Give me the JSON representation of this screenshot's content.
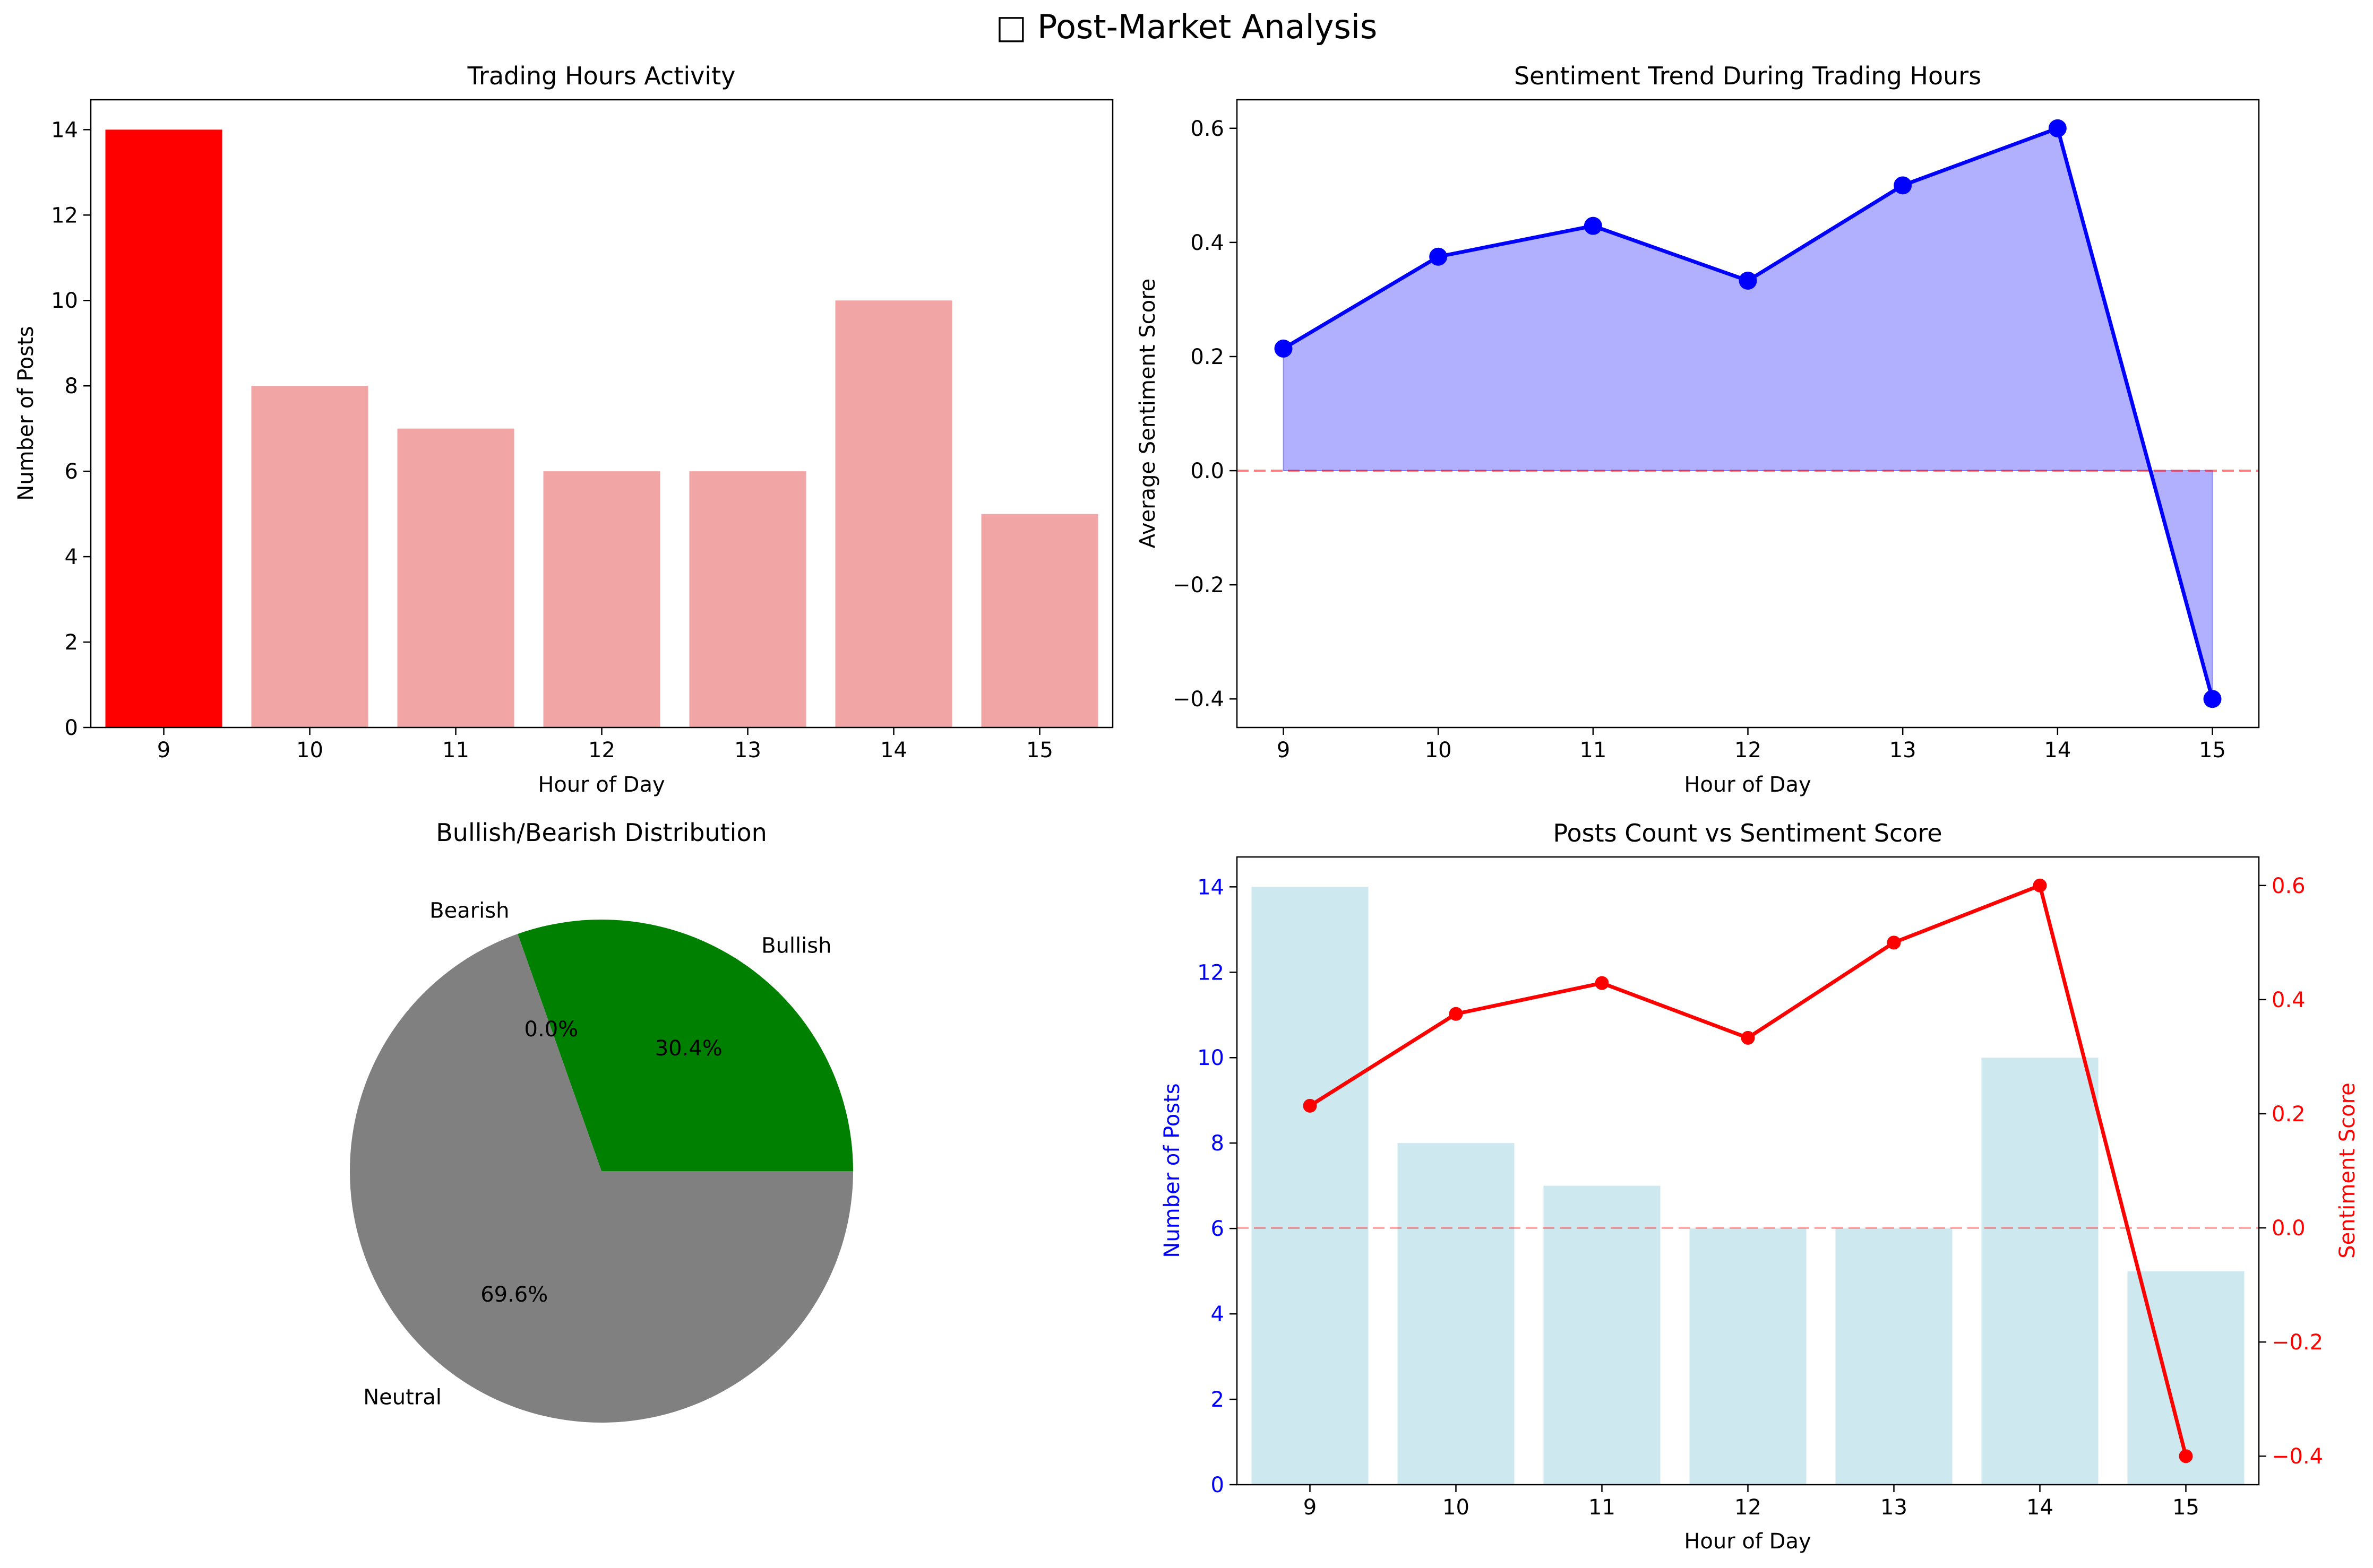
{
  "figure": {
    "title": "□ Post-Market Analysis"
  },
  "chart_data": [
    {
      "type": "bar",
      "title": "Trading Hours Activity",
      "xlabel": "Hour of Day",
      "ylabel": "Number of Posts",
      "categories": [
        "9",
        "10",
        "11",
        "12",
        "13",
        "14",
        "15"
      ],
      "values": [
        14,
        8,
        7,
        6,
        6,
        10,
        5
      ],
      "ylim": [
        0,
        14.7
      ],
      "yticks": [
        0,
        2,
        4,
        6,
        8,
        10,
        12,
        14
      ],
      "colors": {
        "highlight": "#ff0000",
        "normal": "#f2a5a5"
      },
      "highlight_category": "9",
      "grid": false
    },
    {
      "type": "area",
      "title": "Sentiment Trend During Trading Hours",
      "xlabel": "Hour of Day",
      "ylabel": "Average Sentiment Score",
      "x": [
        9,
        10,
        11,
        12,
        13,
        14,
        15
      ],
      "values": [
        0.214,
        0.375,
        0.429,
        0.333,
        0.5,
        0.6,
        -0.4
      ],
      "xlim": [
        8.7,
        15.3
      ],
      "ylim": [
        -0.45,
        0.65
      ],
      "xticks": [
        9,
        10,
        11,
        12,
        13,
        14,
        15
      ],
      "yticks": [
        -0.4,
        -0.2,
        0.0,
        0.2,
        0.4,
        0.6
      ],
      "ytick_labels": [
        "−0.4",
        "−0.2",
        "0.0",
        "0.2",
        "0.4",
        "0.6"
      ],
      "reference_line": 0,
      "colors": {
        "line": "#0000ff",
        "fill": "#b0b0ff",
        "reference": "#ff0000"
      },
      "grid": false
    },
    {
      "type": "pie",
      "title": "Bullish/Bearish Distribution",
      "labels": [
        "Bullish",
        "Bearish",
        "Neutral"
      ],
      "values": [
        30.4,
        0.0,
        69.6
      ],
      "pct_labels": [
        "30.4%",
        "0.0%",
        "69.6%"
      ],
      "colors": [
        "#008000",
        "#ff0000",
        "#808080"
      ],
      "start_angle": 0
    },
    {
      "type": "bar+line",
      "title": "Posts Count vs Sentiment Score",
      "xlabel": "Hour of Day",
      "ylabel_left": "Number of Posts",
      "ylabel_right": "Sentiment Score",
      "categories": [
        "9",
        "10",
        "11",
        "12",
        "13",
        "14",
        "15"
      ],
      "bar_values": [
        14,
        8,
        7,
        6,
        6,
        10,
        5
      ],
      "line_values": [
        0.214,
        0.375,
        0.429,
        0.333,
        0.5,
        0.6,
        -0.4
      ],
      "ylim_left": [
        0,
        14.7
      ],
      "ylim_right": [
        -0.45,
        0.65
      ],
      "yticks_left": [
        0,
        2,
        4,
        6,
        8,
        10,
        12,
        14
      ],
      "yticks_right": [
        -0.4,
        -0.2,
        0.0,
        0.2,
        0.4,
        0.6
      ],
      "ytick_right_labels": [
        "−0.4",
        "−0.2",
        "0.0",
        "0.2",
        "0.4",
        "0.6"
      ],
      "reference_line": 0,
      "colors": {
        "bars": "#add8e6",
        "line": "#ff0000",
        "left_axis": "#0000ff",
        "right_axis": "#ff0000",
        "reference": "#ff0000"
      },
      "grid": false
    }
  ]
}
